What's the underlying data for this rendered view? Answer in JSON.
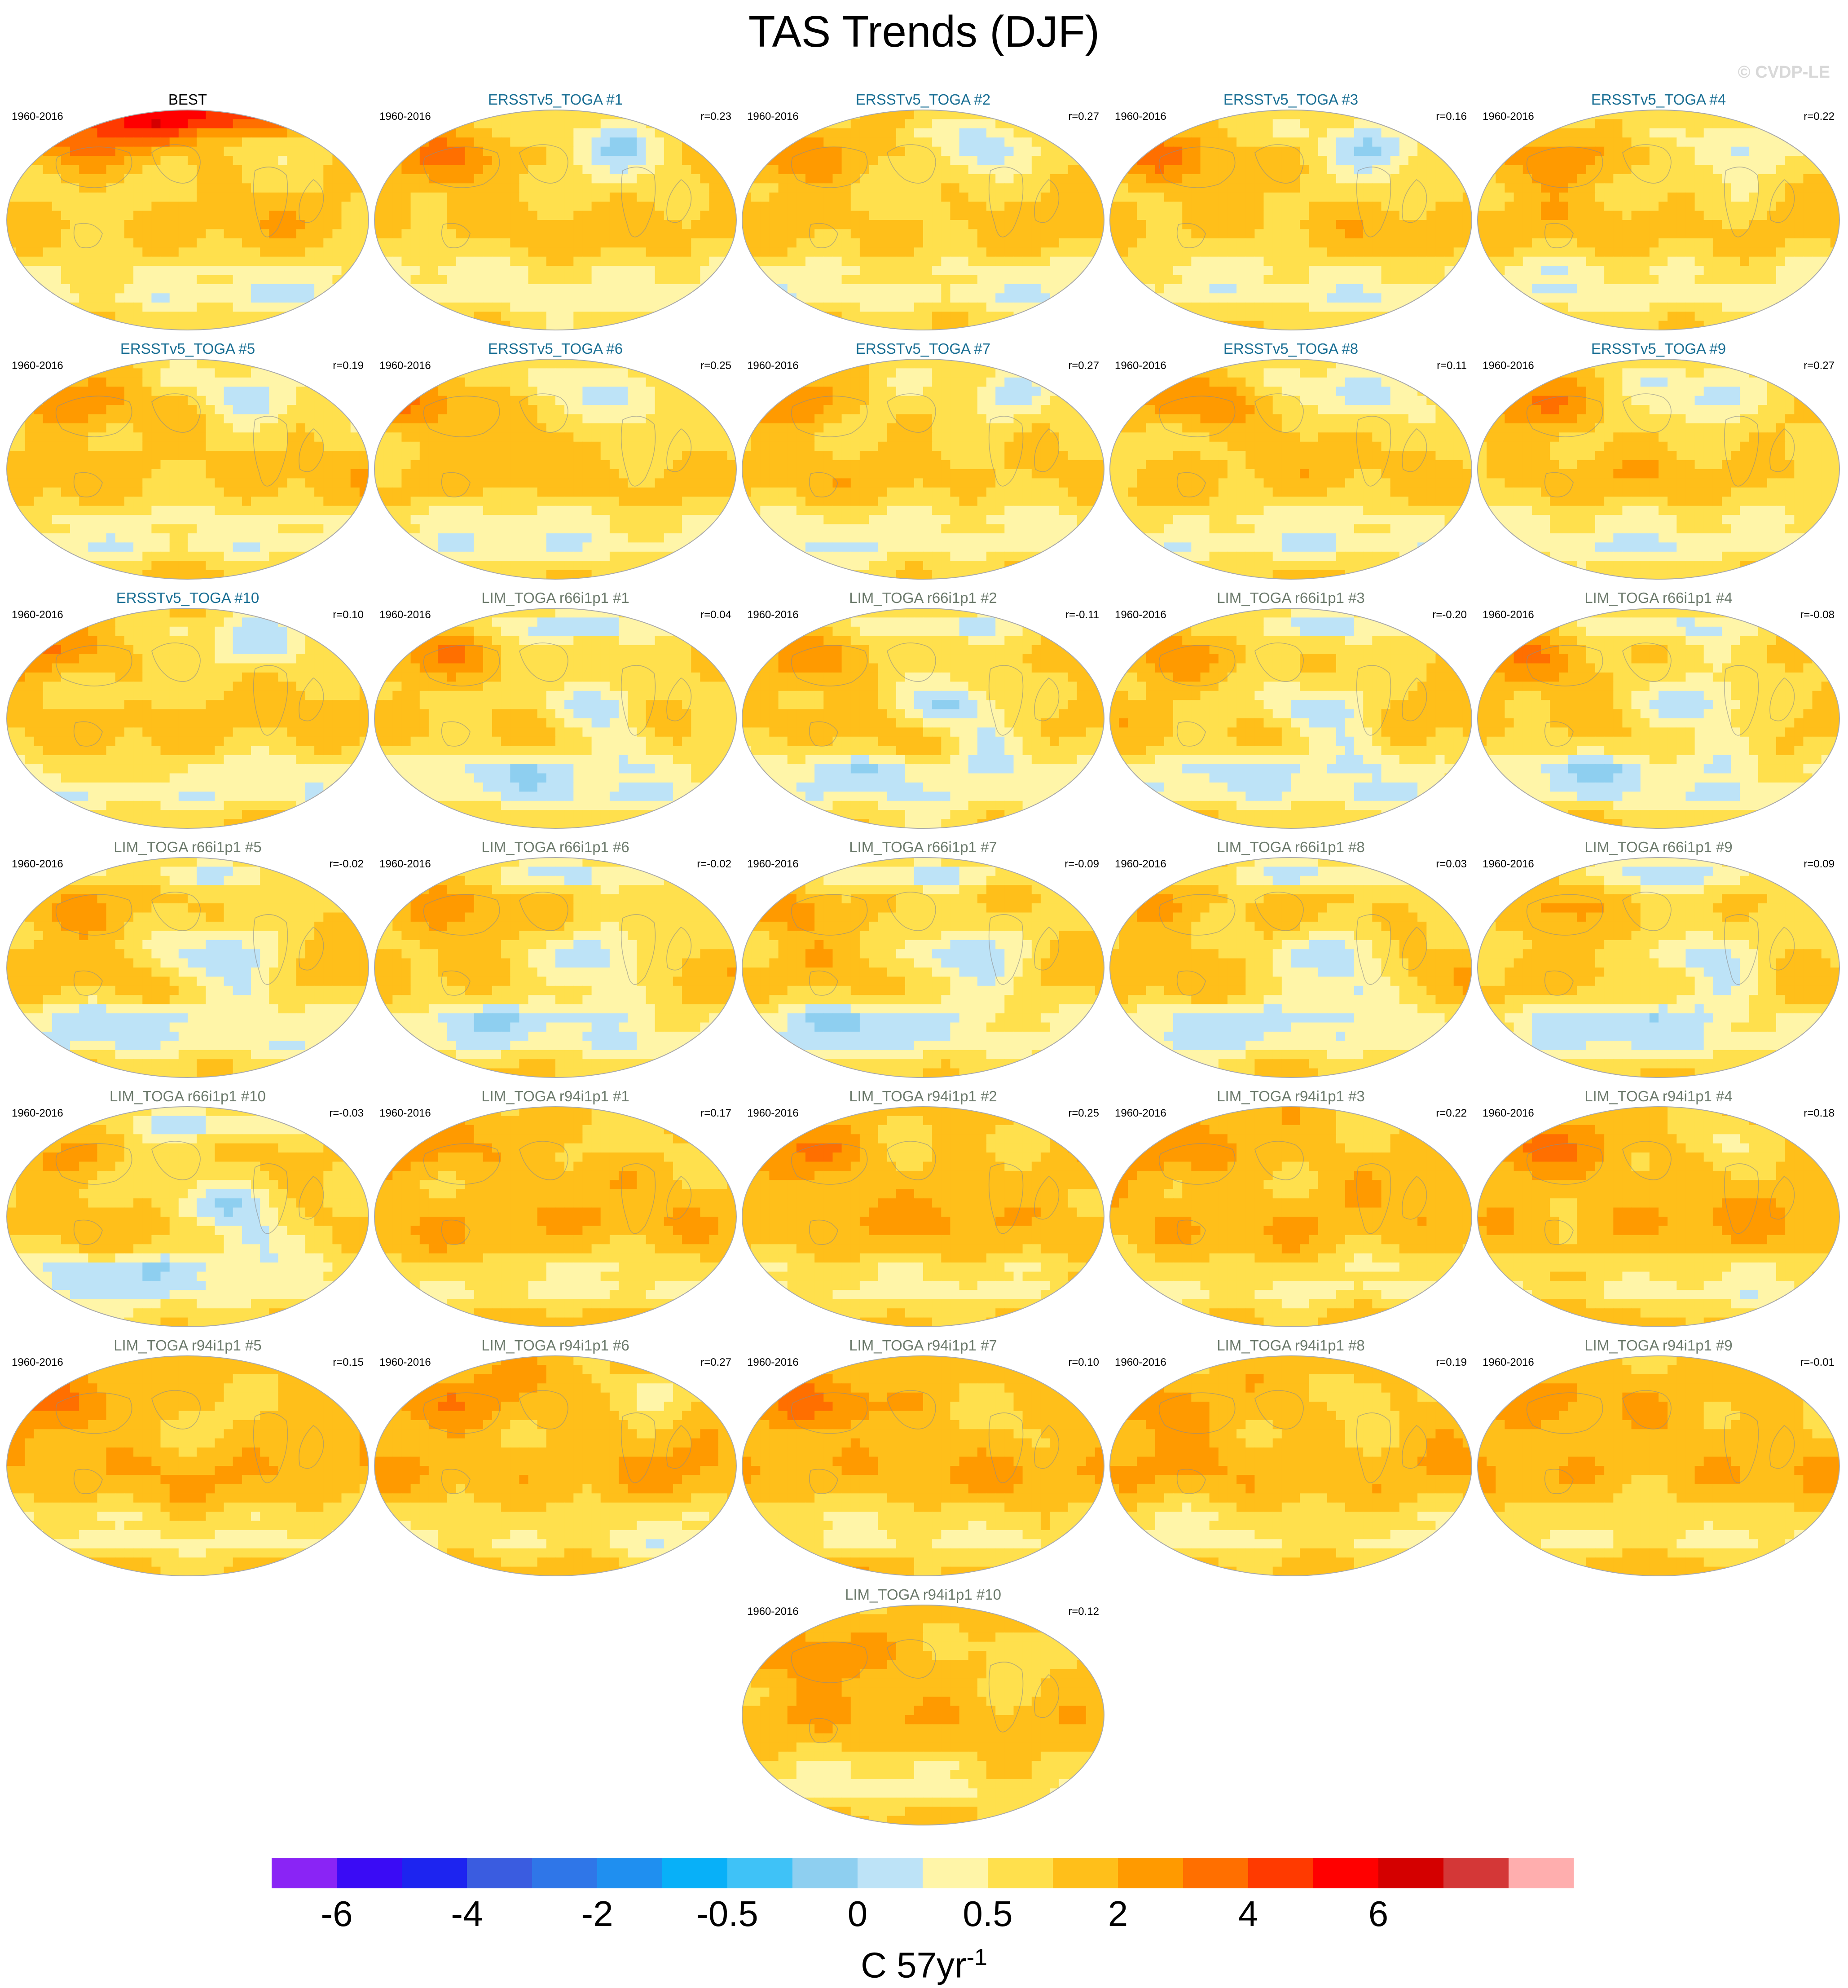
{
  "title": "TAS Trends (DJF)",
  "watermark": "© CVDP-LE",
  "period": "1960-2016",
  "units": {
    "base": "C 57yr",
    "superscript": "-1"
  },
  "colors": {
    "ocean_bg": "#ffffff",
    "map_border": "#aaaaaa",
    "title_obs": "#000000",
    "title_ersst": "#1a6f94",
    "title_lim": "#6c7a6c"
  },
  "chart_data": {
    "type": "heatmap",
    "projection": "Robinson (global, Pacific-centered)",
    "colorbar": {
      "colors": [
        "#8a24f5",
        "#3a0bf5",
        "#1d24f0",
        "#3a5ce0",
        "#2f76e8",
        "#1f8ff0",
        "#08b0f8",
        "#3fc2f7",
        "#8ecff0",
        "#bde3f7",
        "#fff5a8",
        "#ffe04d",
        "#ffbf1a",
        "#ff9a00",
        "#ff6f00",
        "#ff3a00",
        "#ff0000",
        "#d40000",
        "#d43737",
        "#ffaeae"
      ],
      "tick_labels": [
        "-6",
        "-4",
        "-2",
        "-0.5",
        "0",
        "0.5",
        "2",
        "4",
        "6"
      ],
      "tick_after_segment": [
        1,
        3,
        5,
        7,
        9,
        11,
        13,
        15,
        17
      ]
    },
    "panels": [
      {
        "title": "BEST",
        "r": "",
        "group": "obs",
        "pattern": "warm_arctic"
      },
      {
        "title": "ERSSTv5_TOGA #1",
        "r": "r=0.23",
        "group": "ersst",
        "pattern": "warm_eurasia_cold_na"
      },
      {
        "title": "ERSSTv5_TOGA #2",
        "r": "r=0.27",
        "group": "ersst",
        "pattern": "warm_eurasia_cold_na"
      },
      {
        "title": "ERSSTv5_TOGA #3",
        "r": "r=0.16",
        "group": "ersst",
        "pattern": "warm_eurasia_cold_na"
      },
      {
        "title": "ERSSTv5_TOGA #4",
        "r": "r=0.22",
        "group": "ersst",
        "pattern": "warm_eurasia_cold_na"
      },
      {
        "title": "ERSSTv5_TOGA #5",
        "r": "r=0.19",
        "group": "ersst",
        "pattern": "warm_eurasia_cold_na"
      },
      {
        "title": "ERSSTv5_TOGA #6",
        "r": "r=0.25",
        "group": "ersst",
        "pattern": "warm_eurasia_cold_na"
      },
      {
        "title": "ERSSTv5_TOGA #7",
        "r": "r=0.27",
        "group": "ersst",
        "pattern": "warm_eurasia_cold_na"
      },
      {
        "title": "ERSSTv5_TOGA #8",
        "r": "r=0.11",
        "group": "ersst",
        "pattern": "warm_eurasia_cold_na"
      },
      {
        "title": "ERSSTv5_TOGA #9",
        "r": "r=0.27",
        "group": "ersst",
        "pattern": "warm_eurasia_cold_na"
      },
      {
        "title": "ERSSTv5_TOGA #10",
        "r": "r=0.10",
        "group": "ersst",
        "pattern": "warm_eurasia_cold_na"
      },
      {
        "title": "LIM_TOGA r66i1p1 #1",
        "r": "r=0.04",
        "group": "lim",
        "pattern": "la_nina_cool"
      },
      {
        "title": "LIM_TOGA r66i1p1 #2",
        "r": "r=-0.11",
        "group": "lim",
        "pattern": "la_nina_cool"
      },
      {
        "title": "LIM_TOGA r66i1p1 #3",
        "r": "r=-0.20",
        "group": "lim",
        "pattern": "la_nina_cool"
      },
      {
        "title": "LIM_TOGA r66i1p1 #4",
        "r": "r=-0.08",
        "group": "lim",
        "pattern": "la_nina_cool"
      },
      {
        "title": "LIM_TOGA r66i1p1 #5",
        "r": "r=-0.02",
        "group": "lim",
        "pattern": "la_nina_cool"
      },
      {
        "title": "LIM_TOGA r66i1p1 #6",
        "r": "r=-0.02",
        "group": "lim",
        "pattern": "la_nina_cool"
      },
      {
        "title": "LIM_TOGA r66i1p1 #7",
        "r": "r=-0.09",
        "group": "lim",
        "pattern": "la_nina_cool"
      },
      {
        "title": "LIM_TOGA r66i1p1 #8",
        "r": "r=0.03",
        "group": "lim",
        "pattern": "la_nina_cool"
      },
      {
        "title": "LIM_TOGA r66i1p1 #9",
        "r": "r=0.09",
        "group": "lim",
        "pattern": "la_nina_cool"
      },
      {
        "title": "LIM_TOGA r66i1p1 #10",
        "r": "r=-0.03",
        "group": "lim",
        "pattern": "la_nina_cool"
      },
      {
        "title": "LIM_TOGA r94i1p1 #1",
        "r": "r=0.17",
        "group": "lim",
        "pattern": "uniform_warm"
      },
      {
        "title": "LIM_TOGA r94i1p1 #2",
        "r": "r=0.25",
        "group": "lim",
        "pattern": "uniform_warm"
      },
      {
        "title": "LIM_TOGA r94i1p1 #3",
        "r": "r=0.22",
        "group": "lim",
        "pattern": "uniform_warm"
      },
      {
        "title": "LIM_TOGA r94i1p1 #4",
        "r": "r=0.18",
        "group": "lim",
        "pattern": "uniform_warm"
      },
      {
        "title": "LIM_TOGA r94i1p1 #5",
        "r": "r=0.15",
        "group": "lim",
        "pattern": "uniform_warm"
      },
      {
        "title": "LIM_TOGA r94i1p1 #6",
        "r": "r=0.27",
        "group": "lim",
        "pattern": "uniform_warm"
      },
      {
        "title": "LIM_TOGA r94i1p1 #7",
        "r": "r=0.10",
        "group": "lim",
        "pattern": "uniform_warm"
      },
      {
        "title": "LIM_TOGA r94i1p1 #8",
        "r": "r=0.19",
        "group": "lim",
        "pattern": "uniform_warm"
      },
      {
        "title": "LIM_TOGA r94i1p1 #9",
        "r": "r=-0.01",
        "group": "lim",
        "pattern": "uniform_warm"
      },
      {
        "title": "LIM_TOGA r94i1p1 #10",
        "r": "r=0.12",
        "group": "lim",
        "pattern": "uniform_warm"
      }
    ]
  }
}
